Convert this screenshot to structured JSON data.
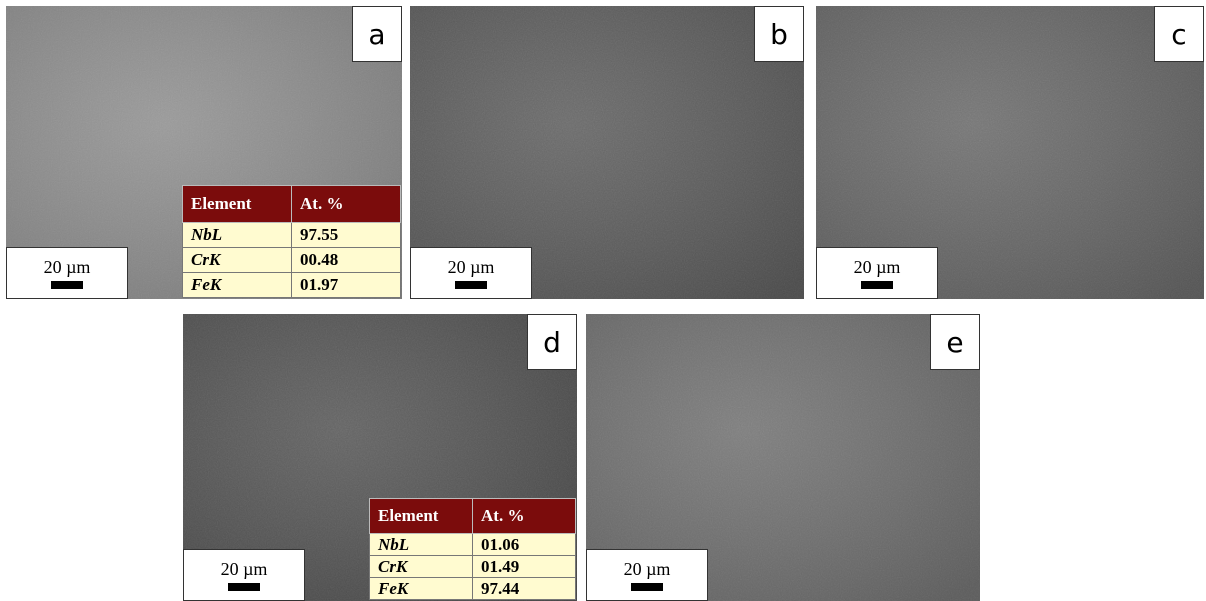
{
  "panels": [
    {
      "label": "a",
      "scale_bar": "20 µm",
      "table": {
        "header": [
          "Element",
          "At. %"
        ],
        "rows": [
          [
            "NbL",
            "97.55"
          ],
          [
            "CrK",
            "00.48"
          ],
          [
            "FeK",
            "01.97"
          ]
        ]
      }
    },
    {
      "label": "b",
      "scale_bar": "20 µm"
    },
    {
      "label": "c",
      "scale_bar": "20 µm"
    },
    {
      "label": "d",
      "scale_bar": "20 µm",
      "table": {
        "header": [
          "Element",
          "At. %"
        ],
        "rows": [
          [
            "NbL",
            "01.06"
          ],
          [
            "CrK",
            "01.49"
          ],
          [
            "FeK",
            "97.44"
          ]
        ]
      }
    },
    {
      "label": "e",
      "scale_bar": "20 µm"
    }
  ]
}
